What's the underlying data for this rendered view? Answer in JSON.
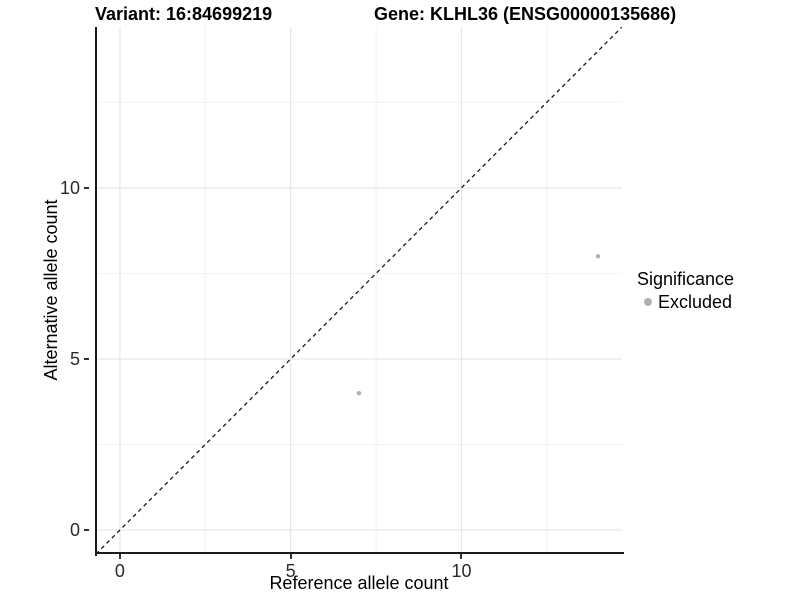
{
  "header": {
    "variant_title": "Variant: 16:84699219",
    "gene_title": "Gene: KLHL36 (ENSG00000135686)"
  },
  "axes": {
    "x_label": "Reference allele count",
    "y_label": "Alternative allele count"
  },
  "legend": {
    "title": "Significance",
    "items": [
      {
        "label": "Excluded",
        "marker": "circle-icon",
        "color": "#b0b0b0"
      }
    ]
  },
  "chart_data": {
    "type": "scatter",
    "xlabel": "Reference allele count",
    "ylabel": "Alternative allele count",
    "xlim": [
      -0.7,
      14.7
    ],
    "ylim": [
      -0.7,
      14.7
    ],
    "x_major_ticks": [
      0,
      5,
      10
    ],
    "y_major_ticks": [
      0,
      5,
      10
    ],
    "x_minor_ticks": [
      2.5,
      7.5,
      12.5
    ],
    "y_minor_ticks": [
      2.5,
      7.5,
      12.5
    ],
    "grid": true,
    "legend_position": "right",
    "series": [
      {
        "name": "Excluded",
        "color": "#b0b0b0",
        "points": [
          {
            "x": 7,
            "y": 4
          },
          {
            "x": 14,
            "y": 8
          }
        ]
      }
    ],
    "identity_line": {
      "style": "dashed",
      "color": "#1a1a1a",
      "from": -0.7,
      "to": 14.7
    }
  },
  "colors": {
    "major_grid": "#e6e6e6",
    "minor_grid": "#f2f2f2",
    "axis_line": "#1a1a1a",
    "tick_label": "#2b2b2b"
  }
}
